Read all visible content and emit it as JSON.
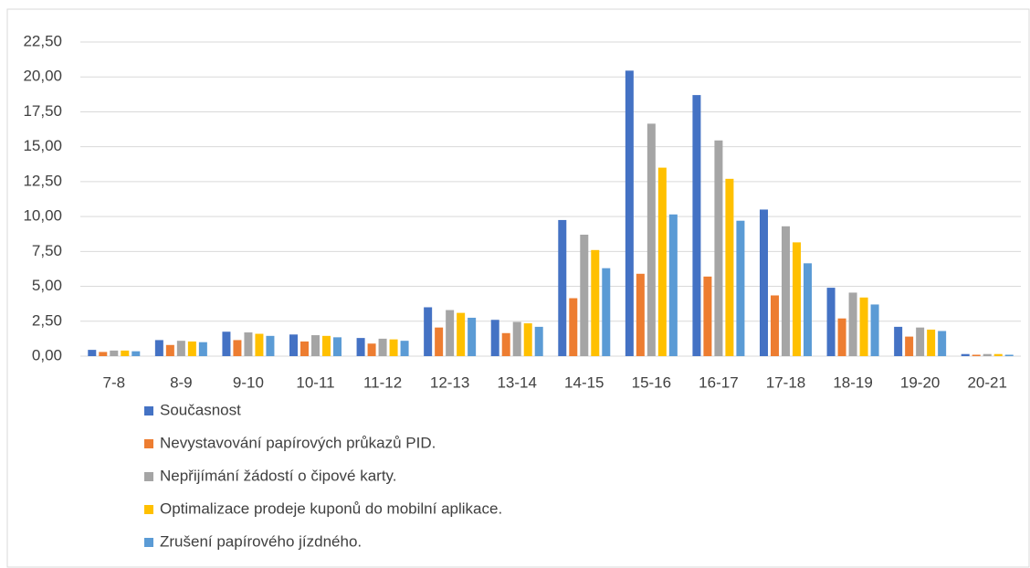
{
  "chart_data": {
    "type": "bar",
    "categories": [
      "7-8",
      "8-9",
      "9-10",
      "10-11",
      "11-12",
      "12-13",
      "13-14",
      "14-15",
      "15-16",
      "16-17",
      "17-18",
      "18-19",
      "19-20",
      "20-21"
    ],
    "series": [
      {
        "name": "Současnost",
        "color": "#4472c4",
        "values": [
          0.45,
          1.15,
          1.75,
          1.55,
          1.3,
          3.5,
          2.6,
          9.75,
          20.45,
          18.7,
          10.5,
          4.9,
          2.1,
          0.15
        ]
      },
      {
        "name": "Nevystavování papírových průkazů PID.",
        "color": "#ed7d31",
        "values": [
          0.3,
          0.8,
          1.15,
          1.05,
          0.9,
          2.05,
          1.65,
          4.15,
          5.9,
          5.7,
          4.35,
          2.7,
          1.4,
          0.1
        ]
      },
      {
        "name": "Nepřijímání žádostí o čipové karty.",
        "color": "#a5a5a5",
        "values": [
          0.4,
          1.1,
          1.7,
          1.5,
          1.25,
          3.3,
          2.45,
          8.7,
          16.65,
          15.45,
          9.3,
          4.55,
          2.05,
          0.15
        ]
      },
      {
        "name": "Optimalizace prodeje kuponů do mobilní aplikace.",
        "color": "#ffc000",
        "values": [
          0.4,
          1.05,
          1.6,
          1.45,
          1.2,
          3.1,
          2.35,
          7.6,
          13.5,
          12.7,
          8.15,
          4.2,
          1.9,
          0.15
        ]
      },
      {
        "name": "Zrušení papírového jízdného.",
        "color": "#5b9bd5",
        "values": [
          0.35,
          1.0,
          1.45,
          1.35,
          1.1,
          2.75,
          2.1,
          6.3,
          10.15,
          9.7,
          6.65,
          3.7,
          1.8,
          0.1
        ]
      }
    ],
    "ylim": [
      0,
      22.5
    ],
    "yticks": [
      {
        "value": 0,
        "label": "0,00"
      },
      {
        "value": 2.5,
        "label": "2,50"
      },
      {
        "value": 5,
        "label": "5,00"
      },
      {
        "value": 7.5,
        "label": "7,50"
      },
      {
        "value": 10,
        "label": "10,00"
      },
      {
        "value": 12.5,
        "label": "12,50"
      },
      {
        "value": 15,
        "label": "15,00"
      },
      {
        "value": 17.5,
        "label": "17,50"
      },
      {
        "value": 20,
        "label": "20,00"
      },
      {
        "value": 22.5,
        "label": "22,50"
      }
    ],
    "grid": true
  }
}
